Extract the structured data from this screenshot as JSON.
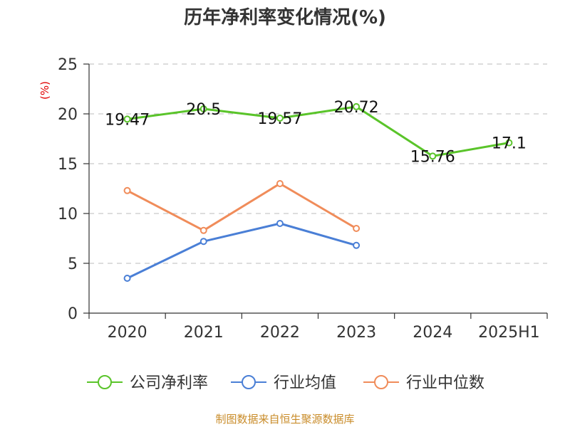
{
  "chart_data": {
    "type": "line",
    "title": "历年净利率变化情况(%)",
    "ylabel": "(%)",
    "xlabel": "",
    "categories": [
      "2020",
      "2021",
      "2022",
      "2023",
      "2024",
      "2025H1"
    ],
    "ylim": [
      0,
      25
    ],
    "yticks": [
      0,
      5,
      10,
      15,
      20,
      25
    ],
    "grid": true,
    "legend_position": "bottom",
    "series": [
      {
        "name": "公司净利率",
        "color": "#5ac42a",
        "values": [
          19.47,
          20.5,
          19.57,
          20.72,
          15.76,
          17.1
        ],
        "data_labels": [
          "19.47",
          "20.5",
          "19.57",
          "20.72",
          "15.76",
          "17.1"
        ]
      },
      {
        "name": "行业均值",
        "color": "#4a7fd6",
        "values": [
          3.5,
          7.2,
          9.0,
          6.8,
          null,
          null
        ]
      },
      {
        "name": "行业中位数",
        "color": "#f08c5a",
        "values": [
          12.3,
          8.3,
          13.0,
          8.5,
          null,
          null
        ]
      }
    ],
    "source": "制图数据来自恒生聚源数据库"
  }
}
